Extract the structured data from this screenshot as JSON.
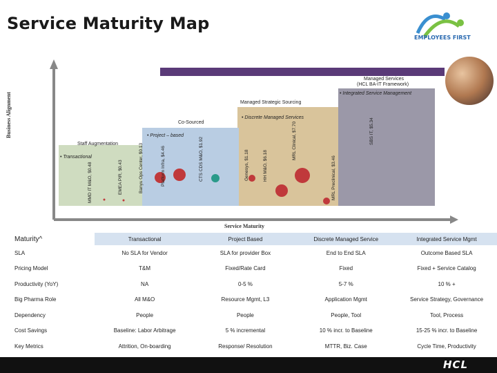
{
  "title": "Service Maturity Map",
  "logo": {
    "text": "EMPLOYEES FIRST",
    "brand": "HCL"
  },
  "axes": {
    "y_label": "Business Alignment",
    "x_label": "Service Maturity"
  },
  "bands": {
    "managed_services": "Managed Services",
    "managed_services_sub": "(HCL BA-IT Framework)",
    "integrated": "• Integrated Service Management",
    "strategic": "Managed Strategic Sourcing",
    "discrete": "• Discrete Managed Services",
    "cosourced": "Co-Sourced",
    "project": "• Project – based",
    "staff": "Staff Augmentation",
    "transactional": "• Transactional"
  },
  "vertical_labels": [
    "MMD IT M&O, $0.48",
    "EMEA PIR, $0.43",
    "Banyu Ops Center, $0.13",
    "Platform Infra, $4.46",
    "CTS CDS M&O, $1.92",
    "Genesys, $1.18",
    "HH M&O, $6.18",
    "MRL Clinical, $7.70",
    "MRL Preclinical, $3.46",
    "SBS IT, $5.34"
  ],
  "table": {
    "header_label": "Maturity^",
    "columns": [
      "Transactional",
      "Project Based",
      "Discrete Managed Service",
      "Integrated Service Mgmt"
    ],
    "rows": [
      {
        "label": "SLA",
        "cells": [
          "No SLA for Vendor",
          "SLA for provider Box",
          "End to End SLA",
          "Outcome Based SLA"
        ]
      },
      {
        "label": "Pricing Model",
        "cells": [
          "T&M",
          "Fixed/Rate Card",
          "Fixed",
          "Fixed + Service Catalog"
        ]
      },
      {
        "label": "Productivity (YoY)",
        "cells": [
          "NA",
          "0-5 %",
          "5-7 %",
          "10 % +"
        ]
      },
      {
        "label": "Big Pharma Role",
        "cells": [
          "All M&O",
          "Resource Mgmt, L3",
          "Application Mgmt",
          "Service Strategy, Governance"
        ]
      },
      {
        "label": "Dependency",
        "cells": [
          "People",
          "People",
          "People, Tool",
          "Tool, Process"
        ]
      },
      {
        "label": "Cost Savings",
        "cells": [
          "Baseline: Labor Arbitrage",
          "5 % incremental",
          "10 % incr. to Baseline",
          "15-25 % incr. to Baseline"
        ]
      },
      {
        "label": "Key Metrics",
        "cells": [
          "Attrition, On-boarding",
          "Response/ Resolution",
          "MTTR, Biz. Case",
          "Cycle Time, Productivity"
        ]
      }
    ]
  },
  "colors": {
    "bubble_red": "#c0393b",
    "bubble_teal": "#2a9a8a",
    "band_purple": "#5a3a78"
  }
}
